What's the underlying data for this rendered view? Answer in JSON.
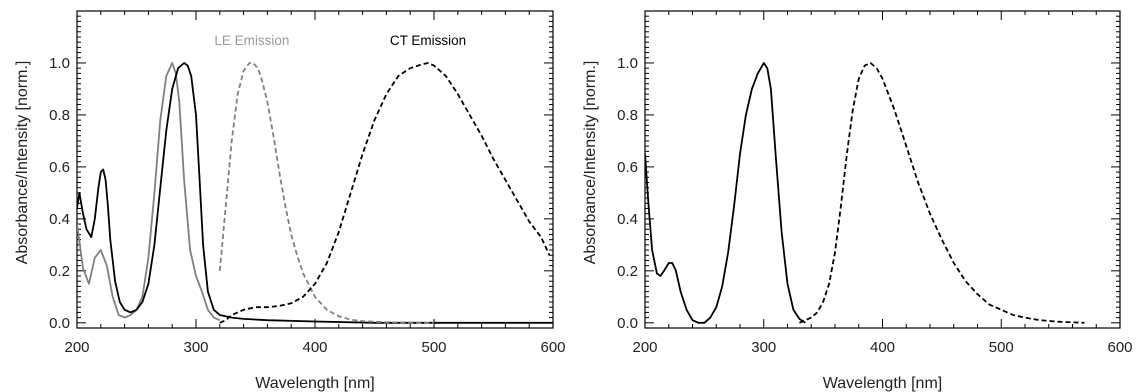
{
  "chart_data": [
    {
      "type": "line",
      "xlabel": "Wavelength [nm]",
      "ylabel": "Absorbance/Intensity [norm.]",
      "xlim": [
        200,
        600
      ],
      "ylim": [
        -0.02,
        1.2
      ],
      "x_ticks": [
        200,
        300,
        400,
        500,
        600
      ],
      "x_tick_labels": [
        "200",
        "300",
        "400",
        "500",
        "600"
      ],
      "y_ticks": [
        0.0,
        0.2,
        0.4,
        0.6,
        0.8,
        1.0
      ],
      "y_tick_labels": [
        "0.0",
        "0.2",
        "0.4",
        "0.6",
        "0.8",
        "1.0"
      ],
      "grid": false,
      "annotations": [
        {
          "text": "LE Emission",
          "x": 347,
          "y": 1.07,
          "color": "#999999"
        },
        {
          "text": "CT Emission",
          "x": 495,
          "y": 1.07,
          "color": "#000000"
        }
      ],
      "series": [
        {
          "color": "#808080",
          "dash": "solid",
          "x": [
            200,
            205,
            210,
            215,
            220,
            225,
            230,
            235,
            240,
            245,
            250,
            255,
            260,
            265,
            270,
            275,
            280,
            283,
            286,
            290,
            295,
            300,
            305,
            310,
            315,
            320
          ],
          "y": [
            0.38,
            0.21,
            0.15,
            0.25,
            0.28,
            0.22,
            0.1,
            0.03,
            0.02,
            0.03,
            0.05,
            0.1,
            0.25,
            0.5,
            0.78,
            0.95,
            1.0,
            0.96,
            0.85,
            0.55,
            0.28,
            0.18,
            0.12,
            0.05,
            0.02,
            0.01
          ]
        },
        {
          "color": "#000000",
          "dash": "solid",
          "x": [
            200,
            202,
            205,
            208,
            212,
            215,
            218,
            220,
            222,
            224,
            226,
            228,
            232,
            236,
            240,
            245,
            250,
            255,
            260,
            265,
            270,
            275,
            280,
            285,
            290,
            293,
            296,
            300,
            303,
            306,
            310,
            315,
            320,
            330,
            340,
            360,
            400,
            450,
            500,
            550,
            600
          ],
          "y": [
            0.44,
            0.5,
            0.42,
            0.36,
            0.33,
            0.4,
            0.52,
            0.58,
            0.59,
            0.55,
            0.45,
            0.32,
            0.16,
            0.08,
            0.05,
            0.04,
            0.05,
            0.08,
            0.15,
            0.3,
            0.52,
            0.74,
            0.9,
            0.98,
            1.0,
            0.99,
            0.95,
            0.8,
            0.55,
            0.3,
            0.12,
            0.05,
            0.03,
            0.02,
            0.015,
            0.01,
            0.005,
            0.0,
            0.0,
            0.0,
            0.0
          ]
        },
        {
          "color": "#808080",
          "dash": "dashed",
          "x": [
            320,
            325,
            330,
            335,
            340,
            345,
            348,
            352,
            355,
            360,
            365,
            370,
            375,
            380,
            385,
            390,
            400,
            410,
            420,
            430,
            440,
            460,
            480,
            500
          ],
          "y": [
            0.2,
            0.45,
            0.7,
            0.88,
            0.97,
            1.0,
            1.0,
            0.98,
            0.94,
            0.85,
            0.72,
            0.58,
            0.45,
            0.34,
            0.26,
            0.19,
            0.1,
            0.05,
            0.025,
            0.012,
            0.006,
            0.002,
            0.001,
            0.0
          ]
        },
        {
          "color": "#000000",
          "dash": "dashed",
          "x": [
            320,
            325,
            330,
            335,
            340,
            350,
            360,
            370,
            380,
            390,
            400,
            410,
            420,
            430,
            440,
            450,
            460,
            470,
            480,
            490,
            495,
            500,
            510,
            520,
            530,
            540,
            550,
            560,
            570,
            580,
            590,
            597
          ],
          "y": [
            0.0,
            0.01,
            0.03,
            0.04,
            0.05,
            0.06,
            0.06,
            0.065,
            0.075,
            0.1,
            0.15,
            0.23,
            0.35,
            0.5,
            0.65,
            0.78,
            0.88,
            0.95,
            0.98,
            0.995,
            1.0,
            0.99,
            0.95,
            0.88,
            0.8,
            0.72,
            0.63,
            0.55,
            0.47,
            0.39,
            0.33,
            0.26
          ]
        }
      ]
    },
    {
      "type": "line",
      "xlabel": "Wavelength [nm]",
      "ylabel": "Absorbance/Intensity [norm.]",
      "xlim": [
        200,
        600
      ],
      "ylim": [
        -0.02,
        1.2
      ],
      "x_ticks": [
        200,
        300,
        400,
        500,
        600
      ],
      "x_tick_labels": [
        "200",
        "300",
        "400",
        "500",
        "600"
      ],
      "y_ticks": [
        0.0,
        0.2,
        0.4,
        0.6,
        0.8,
        1.0
      ],
      "y_tick_labels": [
        "0.0",
        "0.2",
        "0.4",
        "0.6",
        "0.8",
        "1.0"
      ],
      "grid": false,
      "annotations": [],
      "series": [
        {
          "color": "#000000",
          "dash": "solid",
          "x": [
            200,
            203,
            206,
            210,
            213,
            216,
            220,
            223,
            226,
            230,
            235,
            240,
            245,
            250,
            255,
            260,
            265,
            270,
            275,
            280,
            285,
            290,
            295,
            300,
            303,
            306,
            310,
            315,
            320,
            325,
            330,
            335
          ],
          "y": [
            0.65,
            0.45,
            0.28,
            0.19,
            0.18,
            0.2,
            0.23,
            0.23,
            0.2,
            0.12,
            0.05,
            0.01,
            0.0,
            0.0,
            0.02,
            0.06,
            0.14,
            0.27,
            0.45,
            0.65,
            0.8,
            0.9,
            0.96,
            1.0,
            0.98,
            0.9,
            0.65,
            0.35,
            0.15,
            0.05,
            0.015,
            0.0
          ]
        },
        {
          "color": "#000000",
          "dash": "dashed",
          "x": [
            330,
            335,
            340,
            345,
            350,
            355,
            360,
            365,
            370,
            375,
            380,
            385,
            390,
            395,
            400,
            410,
            420,
            430,
            440,
            450,
            460,
            470,
            480,
            490,
            500,
            510,
            520,
            530,
            540,
            550,
            560,
            570
          ],
          "y": [
            0.0,
            0.01,
            0.02,
            0.04,
            0.08,
            0.15,
            0.27,
            0.45,
            0.65,
            0.82,
            0.94,
            0.99,
            1.0,
            0.98,
            0.94,
            0.82,
            0.68,
            0.54,
            0.42,
            0.32,
            0.23,
            0.16,
            0.11,
            0.07,
            0.05,
            0.03,
            0.02,
            0.012,
            0.007,
            0.004,
            0.002,
            0.0
          ]
        }
      ]
    }
  ]
}
